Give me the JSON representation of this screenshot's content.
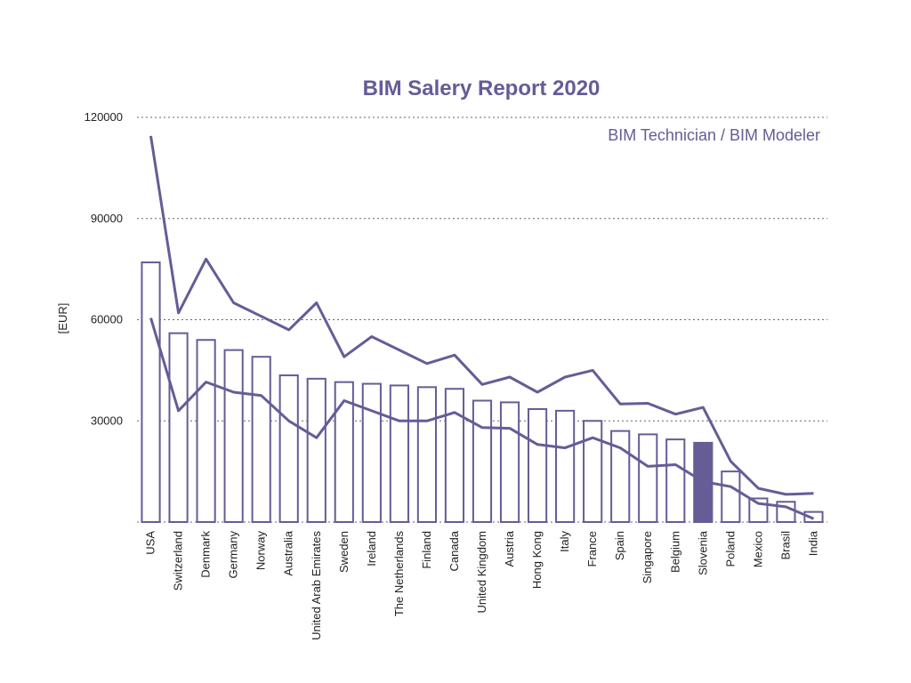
{
  "chart_data": {
    "type": "bar",
    "title": "BIM Salery Report 2020",
    "subtitle": "BIM Technician / BIM Modeler",
    "ylabel": "[EUR]",
    "xlabel": "",
    "ylim": [
      0,
      120000
    ],
    "yticks": [
      "30000",
      "60000",
      "90000",
      "120000"
    ],
    "ytick_values": [
      30000,
      60000,
      90000,
      120000
    ],
    "grid": true,
    "colors": {
      "accent": "#665c96",
      "bar_fill": "#ffffff",
      "grid": "#666666"
    },
    "highlight_category": "Slovenia",
    "categories": [
      "USA",
      "Switzerland",
      "Denmark",
      "Germany",
      "Norway",
      "Australia",
      "United Arab Emirates",
      "Sweden",
      "Ireland",
      "The Netherlands",
      "Finland",
      "Canada",
      "United Kingdom",
      "Austria",
      "Hong Kong",
      "Italy",
      "France",
      "Spain",
      "Singapore",
      "Belgium",
      "Slovenia",
      "Poland",
      "Mexico",
      "Brasil",
      "India"
    ],
    "series": [
      {
        "type": "bar",
        "values": [
          77000,
          56000,
          54000,
          51000,
          49000,
          43500,
          42500,
          41500,
          41000,
          40500,
          40000,
          39500,
          36000,
          35500,
          33500,
          33000,
          30000,
          27000,
          26000,
          24500,
          23500,
          15000,
          7000,
          6000,
          3000
        ]
      },
      {
        "type": "line",
        "values": [
          114500,
          62000,
          78000,
          65000,
          61000,
          57000,
          65000,
          49000,
          55000,
          51000,
          47000,
          49500,
          40800,
          43000,
          38500,
          43000,
          45000,
          35000,
          35200,
          32000,
          34000,
          18000,
          10000,
          8200,
          8500
        ]
      },
      {
        "type": "line",
        "values": [
          60500,
          33000,
          41500,
          38500,
          37500,
          30000,
          25000,
          36000,
          33000,
          30000,
          30000,
          32500,
          28000,
          27800,
          23000,
          22000,
          25000,
          22000,
          16500,
          17000,
          12000,
          10500,
          5500,
          4500,
          1000
        ]
      }
    ]
  }
}
